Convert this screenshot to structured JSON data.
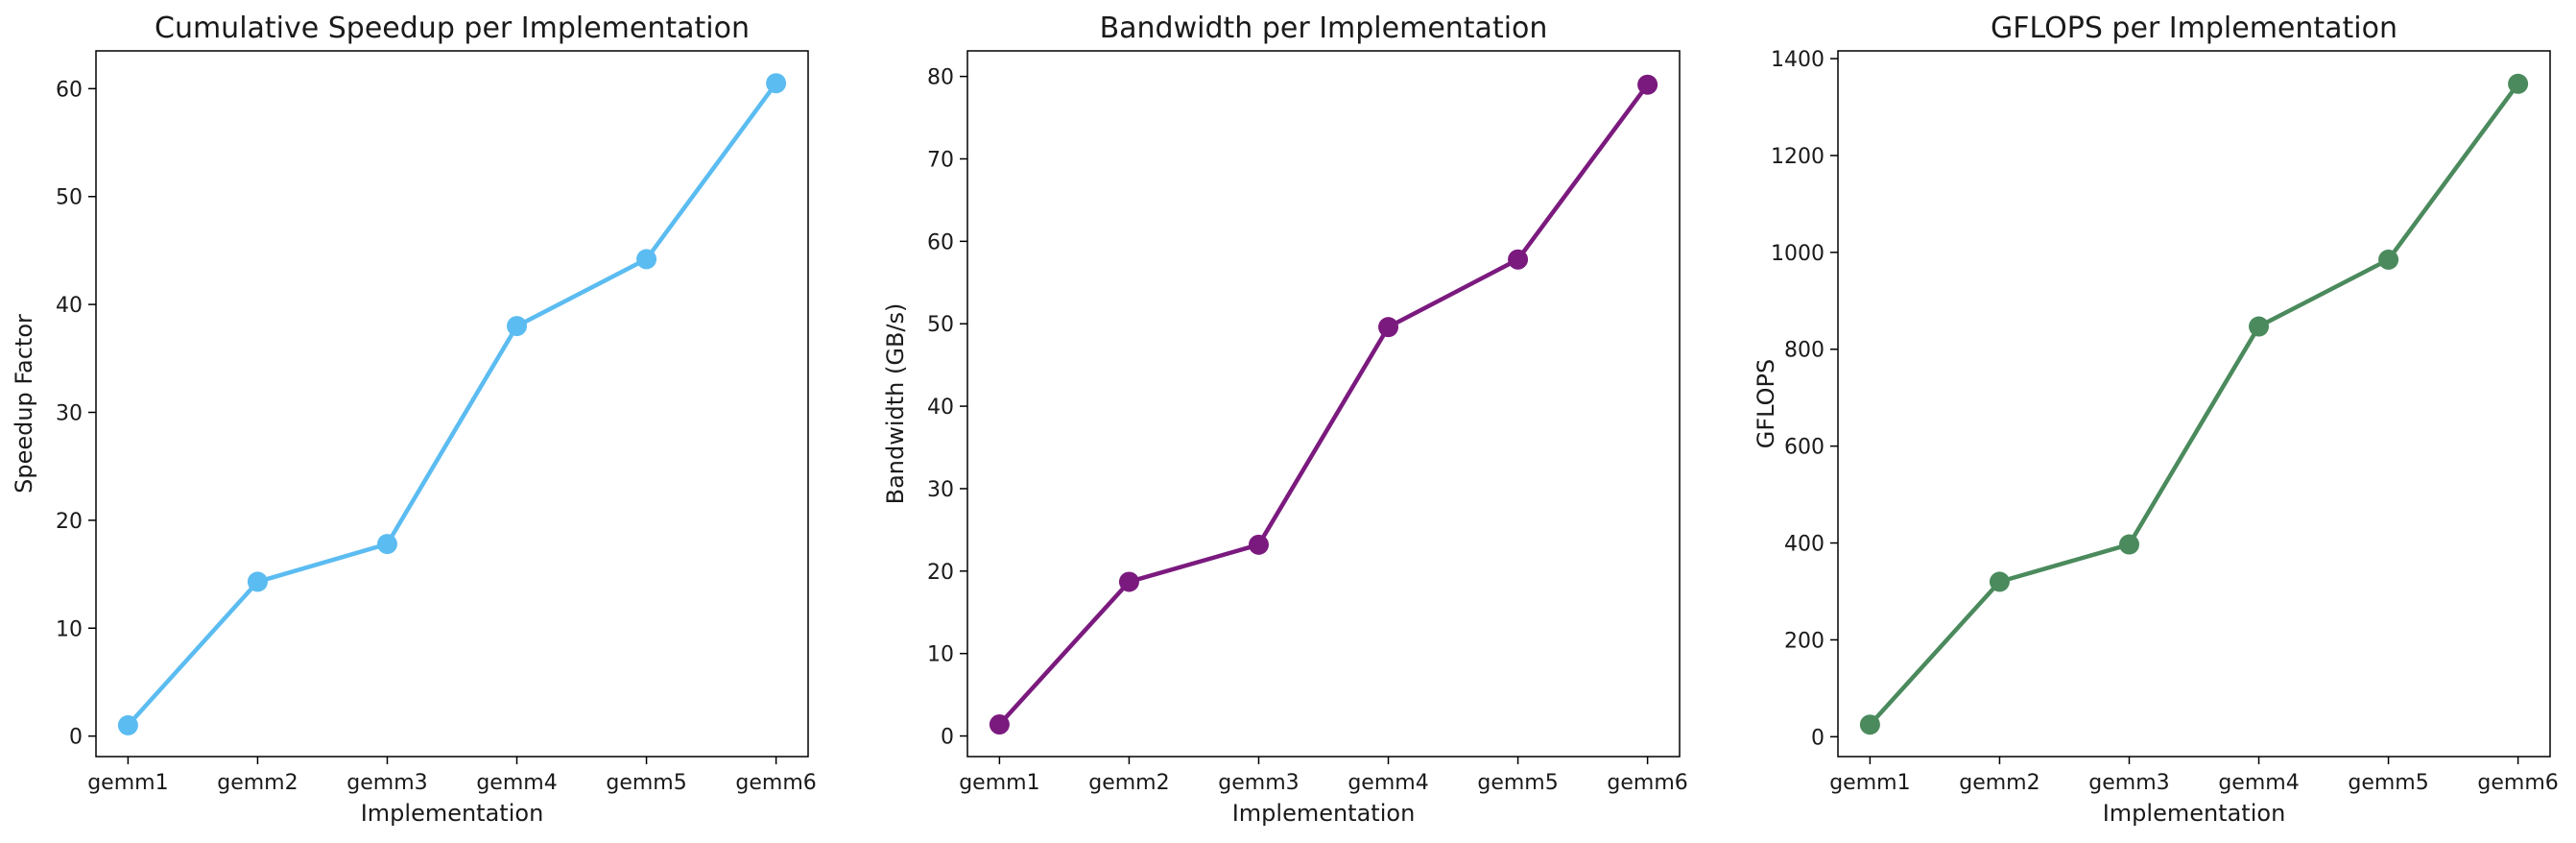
{
  "chart_data": [
    {
      "type": "line",
      "title": "Cumulative Speedup per Implementation",
      "xlabel": "Implementation",
      "ylabel": "Speedup Factor",
      "categories": [
        "gemm1",
        "gemm2",
        "gemm3",
        "gemm4",
        "gemm5",
        "gemm6"
      ],
      "series": [
        {
          "values": [
            1.0,
            14.3,
            17.8,
            38.0,
            44.2,
            60.5
          ]
        }
      ],
      "color": "#5bbcf1",
      "ylim": [
        -1.9,
        63.5
      ],
      "yticks": [
        0,
        10,
        20,
        30,
        40,
        50,
        60
      ],
      "grid": false
    },
    {
      "type": "line",
      "title": "Bandwidth per Implementation",
      "xlabel": "Implementation",
      "ylabel": "Bandwidth (GB/s)",
      "categories": [
        "gemm1",
        "gemm2",
        "gemm3",
        "gemm4",
        "gemm5",
        "gemm6"
      ],
      "series": [
        {
          "values": [
            1.4,
            18.7,
            23.2,
            49.6,
            57.8,
            79.0
          ]
        }
      ],
      "color": "#7b1a7e",
      "ylim": [
        -2.5,
        83.1
      ],
      "yticks": [
        0,
        10,
        20,
        30,
        40,
        50,
        60,
        70,
        80
      ],
      "grid": false
    },
    {
      "type": "line",
      "title": "GFLOPS per Implementation",
      "xlabel": "Implementation",
      "ylabel": "GFLOPS",
      "categories": [
        "gemm1",
        "gemm2",
        "gemm3",
        "gemm4",
        "gemm5",
        "gemm6"
      ],
      "series": [
        {
          "values": [
            25,
            320,
            397,
            847,
            985,
            1348
          ]
        }
      ],
      "color": "#4b8a5d",
      "ylim": [
        -41,
        1416
      ],
      "yticks": [
        0,
        200,
        400,
        600,
        800,
        1000,
        1200,
        1400
      ],
      "grid": false
    }
  ]
}
